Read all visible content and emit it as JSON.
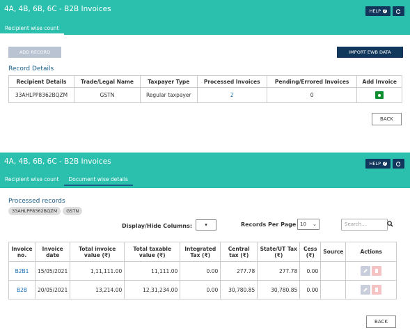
{
  "panel1": {
    "title": "4A, 4B, 6B, 6C - B2B Invoices",
    "help_label": "HELP",
    "tabs": [
      {
        "label": "Recipient wise count"
      }
    ],
    "add_record_label": "ADD RECORD",
    "import_label": "IMPORT EWB DATA",
    "section_title": "Record Details",
    "table": {
      "headers": [
        "Recipient Details",
        "Trade/Legal Name",
        "Taxpayer Type",
        "Processed Invoices",
        "Pending/Errored Invoices",
        "Add Invoice"
      ],
      "rows": [
        {
          "recipient": "33AHLPP8362BQZM",
          "trade_name": "GSTN",
          "taxpayer_type": "Regular taxpayer",
          "processed": "2",
          "pending": "0"
        }
      ]
    },
    "back_label": "BACK"
  },
  "panel2": {
    "title": "4A, 4B, 6B, 6C - B2B Invoices",
    "help_label": "HELP",
    "tabs": [
      {
        "label": "Recipient wise count"
      },
      {
        "label": "Document wise details"
      }
    ],
    "section_title": "Processed records",
    "chips": [
      "33AHLPP8362BQZM",
      "GSTN"
    ],
    "display_hide_label": "Display/Hide Columns:",
    "records_per_page_label": "Records Per Page :",
    "records_per_page_value": "10",
    "search_placeholder": "Search...",
    "table": {
      "headers": [
        "Invoice no.",
        "Invoice date",
        "Total invoice value (₹)",
        "Total taxable value (₹)",
        "Integrated Tax (₹)",
        "Central tax (₹)",
        "State/UT Tax (₹)",
        "Cess (₹)",
        "Source",
        "Actions"
      ],
      "rows": [
        {
          "invoice_no": "B2B1",
          "date": "15/05/2021",
          "total_value": "1,11,111.00",
          "taxable_value": "11,111.00",
          "igst": "0.00",
          "cgst": "277.78",
          "sgst": "277.78",
          "cess": "0.00",
          "source": ""
        },
        {
          "invoice_no": "B2B",
          "date": "20/05/2021",
          "total_value": "13,214.00",
          "taxable_value": "12,31,234.00",
          "igst": "0.00",
          "cgst": "30,780.85",
          "sgst": "30,780.85",
          "cess": "0.00",
          "source": ""
        }
      ]
    },
    "back_label": "BACK"
  },
  "colors": {
    "header_teal": "#2bbfad",
    "navy": "#12375c",
    "link_blue": "#1a6fb8",
    "add_green": "#0f8f2f"
  }
}
